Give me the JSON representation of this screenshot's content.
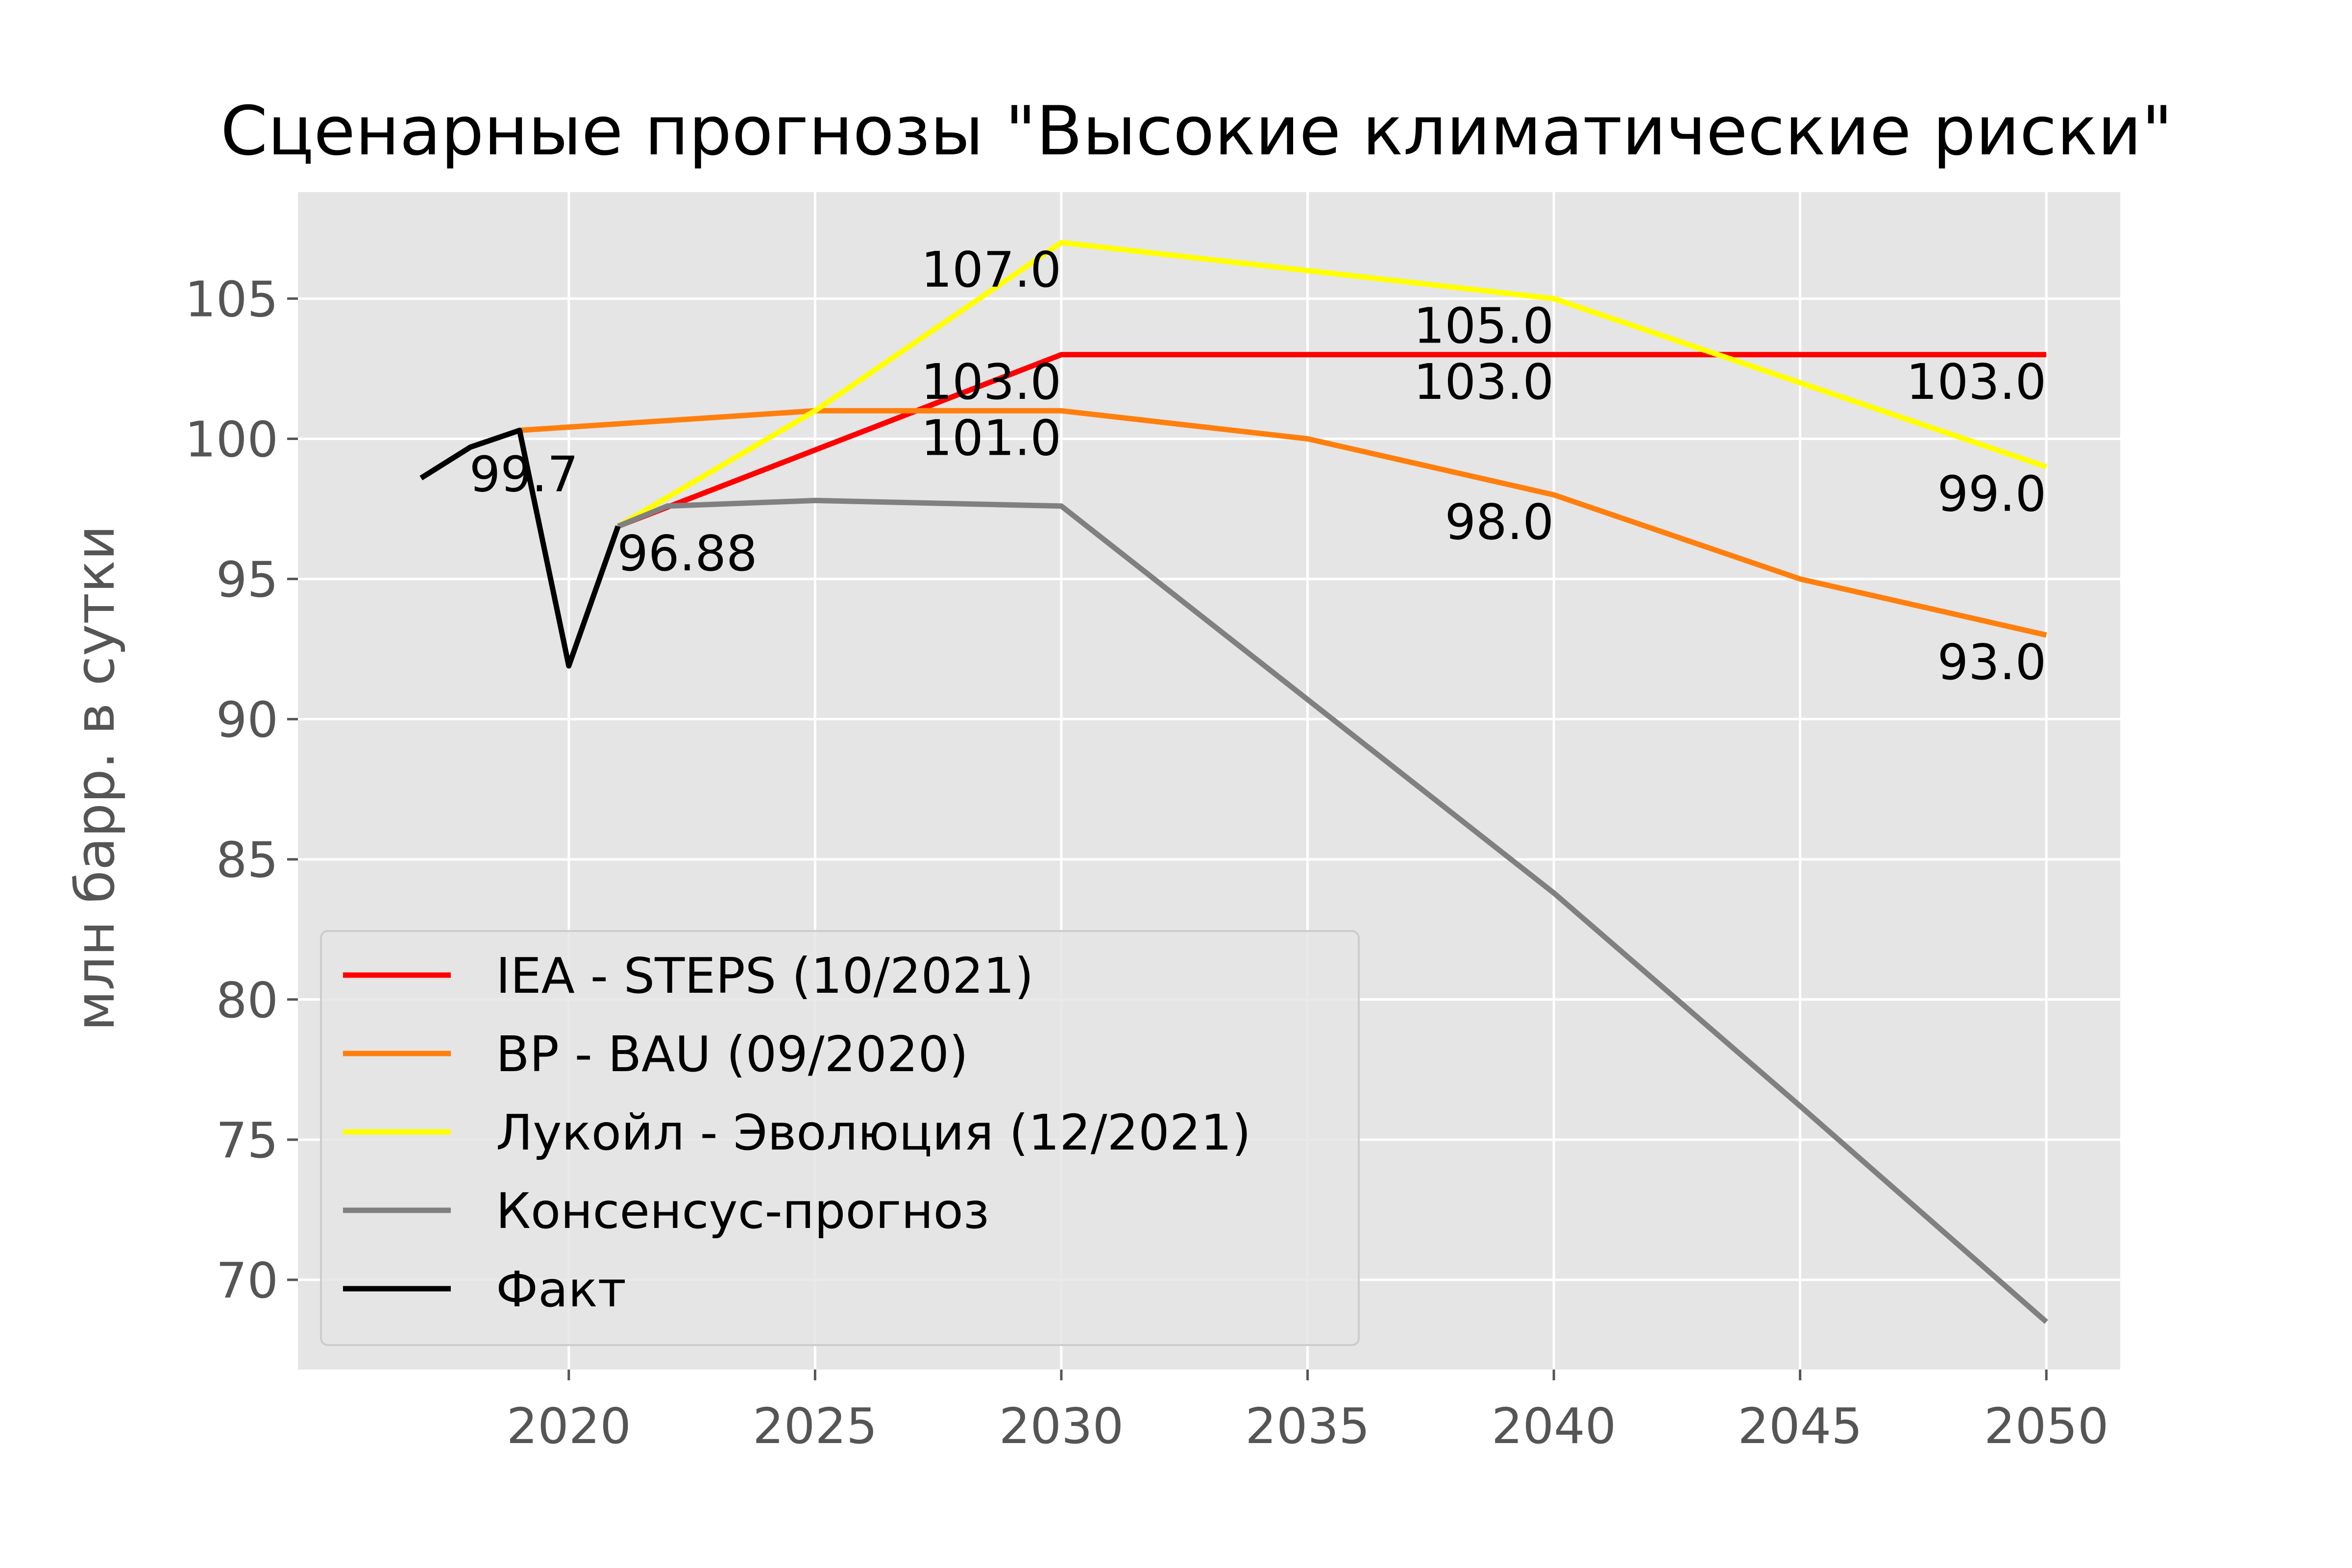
{
  "chart_data": {
    "type": "line",
    "title": "Сценарные прогнозы \"Высокие климатические риски\"",
    "xlabel": "",
    "ylabel": "млн барр. в сутки",
    "xlim": [
      2014.5,
      2051.5
    ],
    "ylim": [
      66.8,
      108.8
    ],
    "x_ticks": [
      2020,
      2025,
      2030,
      2035,
      2040,
      2045,
      2050
    ],
    "y_ticks": [
      70,
      75,
      80,
      85,
      90,
      95,
      100,
      105
    ],
    "grid": true,
    "legend_position": "lower-left",
    "colors": {
      "background": "#E5E5E5",
      "grid": "#FFFFFF",
      "tick": "#555555",
      "title": "#000000"
    },
    "series": [
      {
        "name": "IEA - STEPS (10/2021)",
        "color": "#FF0000",
        "points": [
          [
            2021,
            96.88
          ],
          [
            2030,
            103.0
          ],
          [
            2040,
            103.0
          ],
          [
            2050,
            103.0
          ]
        ]
      },
      {
        "name": "BP - BAU (09/2020)",
        "color": "#FF7F0E",
        "points": [
          [
            2019,
            100.3
          ],
          [
            2025,
            101.0
          ],
          [
            2030,
            101.0
          ],
          [
            2035,
            100.0
          ],
          [
            2040,
            98.0
          ],
          [
            2045,
            95.0
          ],
          [
            2050,
            93.0
          ]
        ]
      },
      {
        "name": "Лукойл - Эволюция (12/2021)",
        "color": "#FFFF00",
        "points": [
          [
            2021,
            96.88
          ],
          [
            2025,
            101.0
          ],
          [
            2030,
            107.0
          ],
          [
            2035,
            106.0
          ],
          [
            2040,
            105.0
          ],
          [
            2045,
            102.0
          ],
          [
            2050,
            99.0
          ]
        ]
      },
      {
        "name": "Консенсус-прогноз",
        "color": "#808080",
        "points": [
          [
            2021,
            96.88
          ],
          [
            2022,
            97.6
          ],
          [
            2025,
            97.8
          ],
          [
            2030,
            97.6
          ],
          [
            2035,
            90.7
          ],
          [
            2040,
            83.8
          ],
          [
            2045,
            76.2
          ],
          [
            2050,
            68.5
          ]
        ]
      },
      {
        "name": "Факт",
        "color": "#000000",
        "points": [
          [
            2017,
            98.6
          ],
          [
            2018,
            99.7
          ],
          [
            2019,
            100.3
          ],
          [
            2020,
            91.9
          ],
          [
            2021,
            96.88
          ]
        ]
      }
    ],
    "annotations": [
      {
        "text": "99.7",
        "x": 2018,
        "y": 99.7
      },
      {
        "text": "96.88",
        "x": 2021,
        "y": 96.88
      },
      {
        "text": "107.0",
        "x": 2030,
        "y": 107.0
      },
      {
        "text": "103.0",
        "x": 2030,
        "y": 103.0
      },
      {
        "text": "101.0",
        "x": 2030,
        "y": 101.0
      },
      {
        "text": "105.0",
        "x": 2040,
        "y": 105.0
      },
      {
        "text": "103.0",
        "x": 2040,
        "y": 103.0
      },
      {
        "text": "98.0",
        "x": 2040,
        "y": 98.0
      },
      {
        "text": "103.0",
        "x": 2050,
        "y": 103.0
      },
      {
        "text": "99.0",
        "x": 2050,
        "y": 99.0
      },
      {
        "text": "93.0",
        "x": 2050,
        "y": 93.0
      }
    ]
  }
}
